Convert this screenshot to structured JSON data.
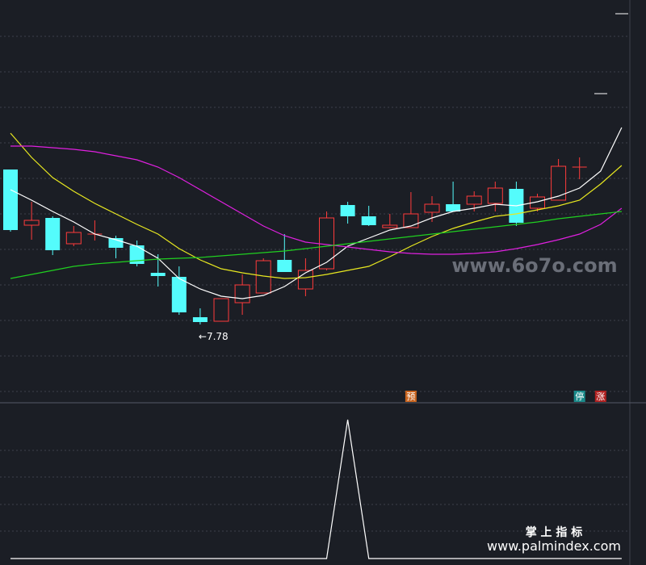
{
  "chart_data": [
    {
      "type": "candlestick",
      "categories": [
        null,
        null,
        null,
        null,
        null,
        null,
        null,
        null,
        null,
        null,
        null,
        null,
        null,
        null,
        null,
        null,
        null,
        null,
        null,
        null,
        null,
        null,
        null,
        null,
        null,
        null,
        null,
        null,
        null,
        null
      ],
      "open": [
        9.7,
        9.01,
        9.1,
        8.78,
        8.9,
        8.85,
        8.76,
        8.42,
        8.37,
        7.87,
        7.82,
        8.05,
        8.17,
        8.58,
        8.22,
        8.47,
        9.26,
        9.12,
        8.98,
        8.98,
        9.17,
        9.27,
        9.27,
        9.28,
        9.46,
        9.22,
        9.32,
        9.73,
        null,
        null
      ],
      "close": [
        8.95,
        9.07,
        8.7,
        8.92,
        8.9,
        8.73,
        8.53,
        8.38,
        7.93,
        7.81,
        8.1,
        8.27,
        8.57,
        8.43,
        8.45,
        9.1,
        9.12,
        9.01,
        9.01,
        9.15,
        9.27,
        9.18,
        9.37,
        9.47,
        9.04,
        9.36,
        9.74,
        9.73,
        null,
        null
      ],
      "high": [
        9.7,
        9.3,
        9.12,
        9.0,
        9.07,
        8.88,
        8.82,
        8.65,
        8.5,
        7.98,
        8.1,
        8.4,
        8.6,
        8.9,
        8.6,
        9.18,
        9.3,
        9.25,
        9.15,
        9.42,
        9.37,
        9.55,
        9.43,
        9.55,
        9.55,
        9.4,
        9.83,
        9.85,
        null,
        null
      ],
      "low": [
        8.93,
        8.83,
        8.64,
        8.75,
        8.82,
        8.6,
        8.5,
        8.25,
        7.9,
        7.78,
        7.82,
        7.9,
        8.17,
        8.43,
        8.13,
        8.45,
        9.03,
        9.0,
        8.97,
        8.98,
        9.05,
        9.18,
        9.18,
        9.18,
        9.0,
        9.18,
        9.32,
        9.58,
        null,
        null
      ],
      "low_labels": [
        null,
        null,
        null,
        null,
        null,
        null,
        null,
        null,
        null,
        "←7.78",
        null,
        null,
        null,
        null,
        null,
        null,
        null,
        null,
        null,
        null,
        null,
        null,
        null,
        null,
        null,
        null,
        null,
        null,
        null,
        null
      ],
      "signals": [
        null,
        null,
        null,
        null,
        null,
        null,
        null,
        null,
        null,
        null,
        null,
        null,
        null,
        null,
        null,
        null,
        null,
        null,
        null,
        "预",
        null,
        null,
        null,
        null,
        null,
        null,
        null,
        "停",
        "涨",
        null
      ],
      "signal_colors": [
        null,
        null,
        null,
        null,
        null,
        null,
        null,
        null,
        null,
        null,
        null,
        null,
        null,
        null,
        null,
        null,
        null,
        null,
        null,
        "#c8641e",
        null,
        null,
        null,
        null,
        null,
        null,
        null,
        "#1a8a8a",
        "#b02020",
        null
      ],
      "up_color": "#ff3b3b",
      "down_color": "#54fcfc",
      "series": [
        {
          "color": "#ffffff",
          "values": [
            9.45,
            9.32,
            9.18,
            9.05,
            8.9,
            8.83,
            8.75,
            8.6,
            8.35,
            8.22,
            8.13,
            8.1,
            8.14,
            8.25,
            8.42,
            8.55,
            8.75,
            8.85,
            8.95,
            9.0,
            9.1,
            9.18,
            9.22,
            9.27,
            9.25,
            9.3,
            9.37,
            9.47,
            9.68,
            10.22
          ]
        },
        {
          "color": "#e8e820",
          "values": [
            10.15,
            9.85,
            9.6,
            9.43,
            9.28,
            9.15,
            9.02,
            8.9,
            8.72,
            8.58,
            8.47,
            8.42,
            8.38,
            8.35,
            8.36,
            8.4,
            8.45,
            8.5,
            8.62,
            8.75,
            8.87,
            8.97,
            9.05,
            9.12,
            9.15,
            9.2,
            9.25,
            9.32,
            9.52,
            9.75
          ]
        },
        {
          "color": "#e020e0",
          "values": [
            9.99,
            9.99,
            9.97,
            9.95,
            9.92,
            9.87,
            9.82,
            9.73,
            9.6,
            9.45,
            9.3,
            9.15,
            9.0,
            8.88,
            8.8,
            8.77,
            8.74,
            8.71,
            8.68,
            8.66,
            8.65,
            8.65,
            8.66,
            8.68,
            8.72,
            8.77,
            8.83,
            8.9,
            9.02,
            9.22
          ]
        },
        {
          "color": "#20d020",
          "values": [
            8.35,
            8.4,
            8.45,
            8.5,
            8.53,
            8.55,
            8.57,
            8.59,
            8.6,
            8.61,
            8.63,
            8.65,
            8.67,
            8.69,
            8.72,
            8.75,
            8.78,
            8.81,
            8.84,
            8.87,
            8.9,
            8.93,
            8.96,
            8.99,
            9.02,
            9.05,
            9.09,
            9.12,
            9.15,
            9.18
          ]
        }
      ],
      "ylim": [
        6.82,
        11.8
      ]
    },
    {
      "type": "line",
      "categories": [
        null,
        null,
        null,
        null,
        null,
        null,
        null,
        null,
        null,
        null,
        null,
        null,
        null,
        null,
        null,
        null,
        null,
        null,
        null,
        null,
        null,
        null,
        null,
        null,
        null,
        null,
        null,
        null,
        null,
        null
      ],
      "series": [
        {
          "color": "#ffffff",
          "values": [
            0,
            0,
            0,
            0,
            0,
            0,
            0,
            0,
            0,
            0,
            0,
            0,
            0,
            0,
            0,
            0,
            1,
            0,
            0,
            0,
            0,
            0,
            0,
            0,
            0,
            0,
            0,
            0,
            0,
            0
          ]
        }
      ],
      "ylim": [
        0,
        1
      ]
    }
  ],
  "watermarks": [
    "www.6o7o.com",
    "掌 上 指 标",
    "www.palmindex.com"
  ]
}
